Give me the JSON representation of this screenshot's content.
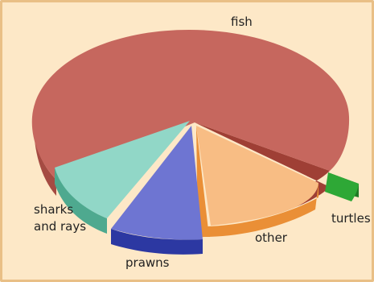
{
  "chart_data": {
    "type": "pie",
    "title": "",
    "three_d": true,
    "exploded": true,
    "slices": [
      {
        "label": "fish",
        "value": 66,
        "color": "#c6675e",
        "side_color": "#9f3f35"
      },
      {
        "label": "turtles",
        "value": 3,
        "color": "#2ea836",
        "side_color": "#1f7a24"
      },
      {
        "label": "other",
        "value": 12,
        "color": "#f8bd84",
        "side_color": "#ea8f36"
      },
      {
        "label": "prawns",
        "value": 9,
        "color": "#6e75d2",
        "side_color": "#2c38a2"
      },
      {
        "label": "sharks and rays",
        "value": 10,
        "color": "#91d7c7",
        "side_color": "#4ea98f"
      }
    ]
  }
}
